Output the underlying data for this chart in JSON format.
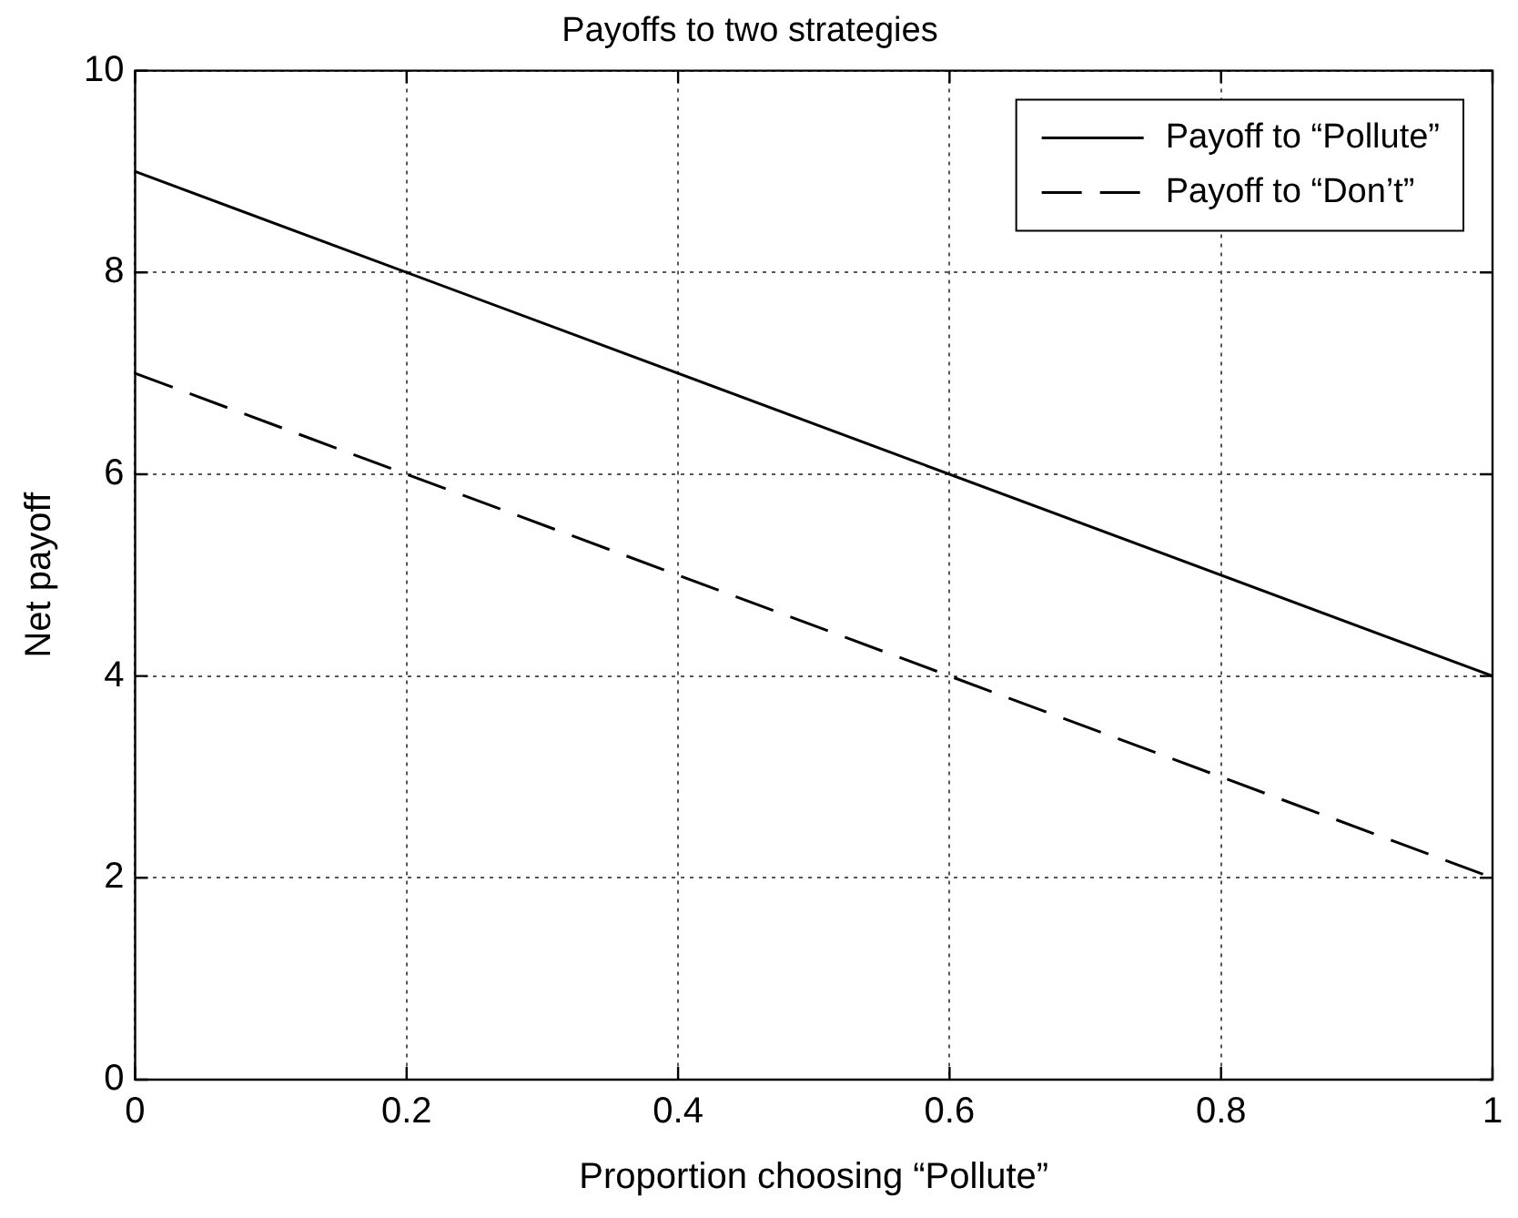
{
  "chart_data": {
    "type": "line",
    "title": "Payoffs to two strategies",
    "xlabel": "Proportion choosing “Pollute”",
    "ylabel": "Net payoff",
    "x": [
      0,
      1
    ],
    "series": [
      {
        "name": "Payoff to “Pollute”",
        "color": "#000000",
        "values": [
          9,
          4
        ],
        "line_style": "solid"
      },
      {
        "name": "Payoff to “Don’t”",
        "color": "#000000",
        "values": [
          7,
          2
        ],
        "line_style": "dashed"
      }
    ],
    "xlim": [
      0,
      1
    ],
    "xticks": [
      0,
      0.2,
      0.4,
      0.6,
      0.8,
      1
    ],
    "ylim": [
      0,
      10
    ],
    "yticks": [
      0,
      2,
      4,
      6,
      8,
      10
    ],
    "grid": true,
    "legend": "top right",
    "marker": "none"
  }
}
